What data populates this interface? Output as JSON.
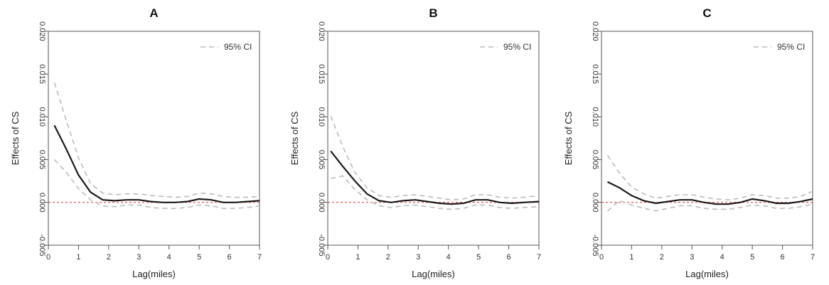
{
  "colors": {
    "estimate": "#1a1a1a",
    "ci": "#bbbbbb",
    "reference": "#e03030",
    "axis": "#555555"
  },
  "chart_data": [
    {
      "type": "line",
      "title": "A",
      "xlabel": "Lag(miles)",
      "ylabel": "Effects of CS",
      "xlim": [
        0,
        7
      ],
      "ylim": [
        -0.005,
        0.02
      ],
      "xticks": [
        "0",
        "1",
        "2",
        "3",
        "4",
        "5",
        "6",
        "7"
      ],
      "yticks": [
        "-0.005",
        "0.000",
        "0.005",
        "0.010",
        "0.015",
        "0.020"
      ],
      "reference_line": 0,
      "legend": {
        "label": "95% CI",
        "position": "top-right"
      },
      "grid": false,
      "x": [
        0.2,
        0.6,
        1.0,
        1.4,
        1.8,
        2.2,
        2.6,
        3.0,
        3.4,
        3.8,
        4.2,
        4.6,
        5.0,
        5.4,
        5.8,
        6.2,
        6.6,
        7.0
      ],
      "series": [
        {
          "name": "",
          "role": "estimate",
          "values": [
            0.009,
            0.0062,
            0.0032,
            0.0012,
            0.0003,
            0.0002,
            0.0003,
            0.0003,
            0.0001,
            0.0,
            0.0,
            0.0001,
            0.0004,
            0.0003,
            0.0,
            0.0,
            0.0001,
            0.0002
          ]
        },
        {
          "name": "95% CI",
          "role": "upper",
          "values": [
            0.014,
            0.0095,
            0.0052,
            0.0022,
            0.0011,
            0.0009,
            0.001,
            0.001,
            0.0008,
            0.0007,
            0.0006,
            0.0007,
            0.0011,
            0.001,
            0.0007,
            0.0006,
            0.0006,
            0.0007
          ]
        },
        {
          "name": "",
          "role": "lower",
          "values": [
            0.005,
            0.0035,
            0.0016,
            0.0003,
            -0.0004,
            -0.0005,
            -0.0003,
            -0.0003,
            -0.0006,
            -0.0007,
            -0.0007,
            -0.0006,
            -0.0003,
            -0.0004,
            -0.0007,
            -0.0007,
            -0.0006,
            -0.0004
          ]
        }
      ]
    },
    {
      "type": "line",
      "title": "B",
      "xlabel": "Lag(miles)",
      "ylabel": "Effects of CS",
      "xlim": [
        0,
        7
      ],
      "ylim": [
        -0.005,
        0.02
      ],
      "xticks": [
        "0",
        "1",
        "2",
        "3",
        "4",
        "5",
        "6",
        "7"
      ],
      "yticks": [
        "-0.005",
        "0.000",
        "0.005",
        "0.010",
        "0.015",
        "0.020"
      ],
      "reference_line": 0,
      "legend": {
        "label": "95% CI",
        "position": "top-right"
      },
      "grid": false,
      "x": [
        0.1,
        0.5,
        0.9,
        1.3,
        1.7,
        2.1,
        2.5,
        2.9,
        3.3,
        3.7,
        4.1,
        4.5,
        4.9,
        5.3,
        5.7,
        6.1,
        6.5,
        7.0
      ],
      "series": [
        {
          "name": "",
          "role": "estimate",
          "values": [
            0.006,
            0.0042,
            0.0025,
            0.001,
            0.0002,
            0.0,
            0.0002,
            0.0003,
            0.0001,
            -0.0001,
            -0.0002,
            -0.0001,
            0.0003,
            0.0003,
            0.0,
            -0.0001,
            0.0,
            0.0001
          ]
        },
        {
          "name": "95% CI",
          "role": "upper",
          "values": [
            0.0101,
            0.0065,
            0.0035,
            0.0017,
            0.0008,
            0.0006,
            0.0008,
            0.0009,
            0.0007,
            0.0005,
            0.0003,
            0.0004,
            0.0009,
            0.0009,
            0.0006,
            0.0005,
            0.0006,
            0.0008
          ]
        },
        {
          "name": "",
          "role": "lower",
          "values": [
            0.0028,
            0.0031,
            0.0015,
            0.0003,
            -0.0004,
            -0.0006,
            -0.0004,
            -0.0003,
            -0.0005,
            -0.0007,
            -0.0008,
            -0.0007,
            -0.0003,
            -0.0003,
            -0.0006,
            -0.0007,
            -0.0006,
            -0.0005
          ]
        }
      ]
    },
    {
      "type": "line",
      "title": "C",
      "xlabel": "Lag(miles)",
      "ylabel": "Effects of CS",
      "xlim": [
        0,
        7
      ],
      "ylim": [
        -0.005,
        0.02
      ],
      "xticks": [
        "0",
        "1",
        "2",
        "3",
        "4",
        "5",
        "6",
        "7"
      ],
      "yticks": [
        "-0.005",
        "0.000",
        "0.005",
        "0.010",
        "0.015",
        "0.020"
      ],
      "reference_line": 0,
      "legend": {
        "label": "95% CI",
        "position": "top-right"
      },
      "grid": false,
      "x": [
        0.2,
        0.6,
        1.0,
        1.4,
        1.8,
        2.2,
        2.6,
        3.0,
        3.4,
        3.8,
        4.2,
        4.6,
        5.0,
        5.4,
        5.8,
        6.2,
        6.6,
        7.0
      ],
      "series": [
        {
          "name": "",
          "role": "estimate",
          "values": [
            0.0024,
            0.0017,
            0.0008,
            0.0002,
            -0.0001,
            0.0001,
            0.0003,
            0.0003,
            0.0,
            -0.0002,
            -0.0002,
            0.0,
            0.0004,
            0.0002,
            -0.0001,
            -0.0001,
            0.0001,
            0.0004
          ]
        },
        {
          "name": "95% CI",
          "role": "upper",
          "values": [
            0.0055,
            0.0034,
            0.0018,
            0.001,
            0.0005,
            0.0007,
            0.0009,
            0.0009,
            0.0006,
            0.0004,
            0.0003,
            0.0005,
            0.0009,
            0.0008,
            0.0005,
            0.0005,
            0.0007,
            0.0013
          ]
        },
        {
          "name": "",
          "role": "lower",
          "values": [
            -0.001,
            0.0002,
            -0.0003,
            -0.0007,
            -0.001,
            -0.0007,
            -0.0004,
            -0.0004,
            -0.0007,
            -0.0008,
            -0.0008,
            -0.0006,
            -0.0003,
            -0.0004,
            -0.0007,
            -0.0007,
            -0.0005,
            -0.0002
          ]
        }
      ]
    }
  ]
}
